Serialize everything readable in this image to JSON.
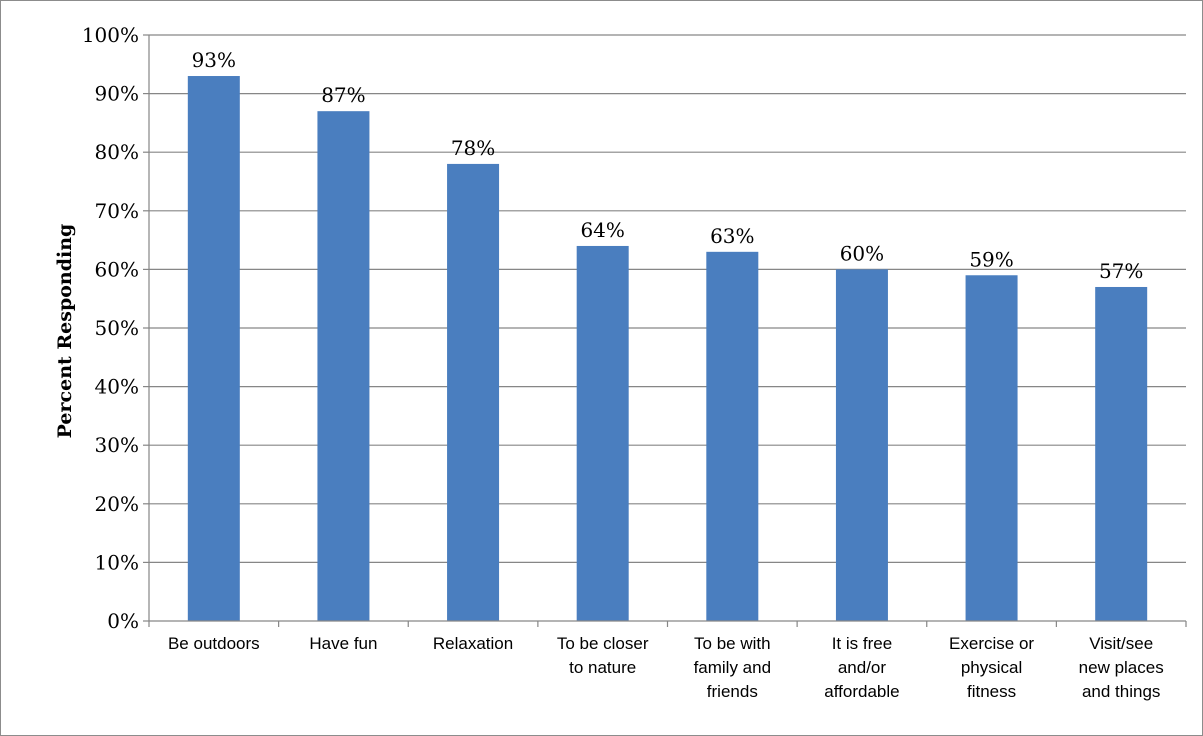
{
  "chart_data": {
    "type": "bar",
    "title": "",
    "xlabel": "",
    "ylabel": "Percent Responding",
    "ylim": [
      0,
      100
    ],
    "y_ticks": [
      "0%",
      "10%",
      "20%",
      "30%",
      "40%",
      "50%",
      "60%",
      "70%",
      "80%",
      "90%",
      "100%"
    ],
    "grid": true,
    "categories": [
      [
        "Be outdoors"
      ],
      [
        "Have fun"
      ],
      [
        "Relaxation"
      ],
      [
        "To be closer",
        "to nature"
      ],
      [
        "To be with",
        "family and",
        "friends"
      ],
      [
        "It is free",
        "and/or",
        "affordable"
      ],
      [
        "Exercise or",
        "physical",
        "fitness"
      ],
      [
        "Visit/see",
        "new places",
        "and things"
      ]
    ],
    "values": [
      93,
      87,
      78,
      64,
      63,
      60,
      59,
      57
    ],
    "data_labels": [
      "93%",
      "87%",
      "78%",
      "64%",
      "63%",
      "60%",
      "59%",
      "57%"
    ],
    "colors": {
      "bar": "#4a7ebf",
      "grid": "#868686",
      "axis": "#868686"
    }
  }
}
